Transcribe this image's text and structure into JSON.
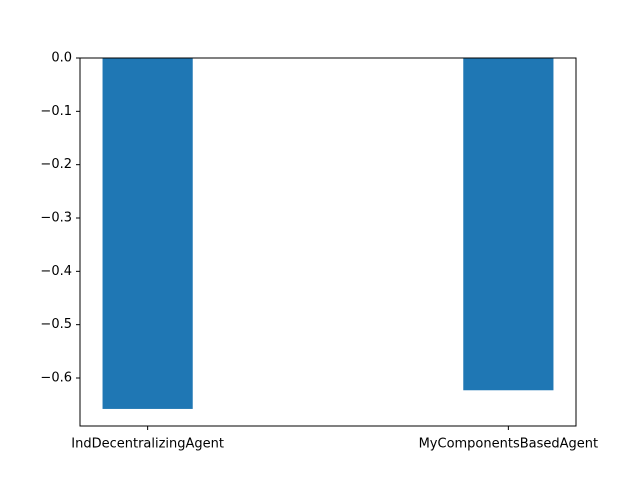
{
  "chart_data": {
    "type": "bar",
    "categories": [
      "IndDecentralizingAgent",
      "MyComponentsBasedAgent"
    ],
    "values": [
      -0.658,
      -0.623
    ],
    "ylim": [
      -0.69,
      0.0
    ],
    "yticks": [
      0.0,
      -0.1,
      -0.2,
      -0.3,
      -0.4,
      -0.5,
      -0.6
    ],
    "ytick_labels": [
      "0.0",
      "−0.1",
      "−0.2",
      "−0.3",
      "−0.4",
      "−0.5",
      "−0.6"
    ],
    "bar_color": "#1f77b4",
    "grid": false,
    "legend": "none",
    "title": "",
    "xlabel": "",
    "ylabel": ""
  }
}
